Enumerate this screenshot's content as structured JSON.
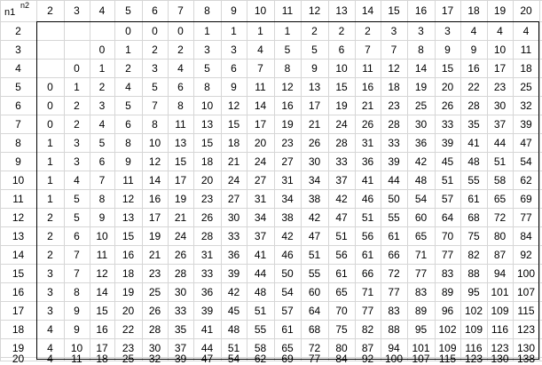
{
  "corner": {
    "row_label": "n1",
    "col_label": "n2"
  },
  "col_headers": [
    "2",
    "3",
    "4",
    "5",
    "6",
    "7",
    "8",
    "9",
    "10",
    "11",
    "12",
    "13",
    "14",
    "15",
    "16",
    "17",
    "18",
    "19",
    "20"
  ],
  "rows": [
    {
      "n1": "2",
      "values": [
        "",
        "",
        "",
        "0",
        "0",
        "0",
        "1",
        "1",
        "1",
        "1",
        "2",
        "2",
        "2",
        "3",
        "3",
        "3",
        "4",
        "4",
        "4"
      ]
    },
    {
      "n1": "3",
      "values": [
        "",
        "",
        "0",
        "1",
        "2",
        "2",
        "3",
        "3",
        "4",
        "5",
        "5",
        "6",
        "7",
        "7",
        "8",
        "9",
        "9",
        "10",
        "11"
      ]
    },
    {
      "n1": "4",
      "values": [
        "",
        "0",
        "1",
        "2",
        "3",
        "4",
        "5",
        "6",
        "7",
        "8",
        "9",
        "10",
        "11",
        "12",
        "14",
        "15",
        "16",
        "17",
        "18"
      ]
    },
    {
      "n1": "5",
      "values": [
        "0",
        "1",
        "2",
        "4",
        "5",
        "6",
        "8",
        "9",
        "11",
        "12",
        "13",
        "15",
        "16",
        "18",
        "19",
        "20",
        "22",
        "23",
        "25"
      ]
    },
    {
      "n1": "6",
      "values": [
        "0",
        "2",
        "3",
        "5",
        "7",
        "8",
        "10",
        "12",
        "14",
        "16",
        "17",
        "19",
        "21",
        "23",
        "25",
        "26",
        "28",
        "30",
        "32"
      ]
    },
    {
      "n1": "7",
      "values": [
        "0",
        "2",
        "4",
        "6",
        "8",
        "11",
        "13",
        "15",
        "17",
        "19",
        "21",
        "24",
        "26",
        "28",
        "30",
        "33",
        "35",
        "37",
        "39"
      ]
    },
    {
      "n1": "8",
      "values": [
        "1",
        "3",
        "5",
        "8",
        "10",
        "13",
        "15",
        "18",
        "20",
        "23",
        "26",
        "28",
        "31",
        "33",
        "36",
        "39",
        "41",
        "44",
        "47"
      ]
    },
    {
      "n1": "9",
      "values": [
        "1",
        "3",
        "6",
        "9",
        "12",
        "15",
        "18",
        "21",
        "24",
        "27",
        "30",
        "33",
        "36",
        "39",
        "42",
        "45",
        "48",
        "51",
        "54"
      ]
    },
    {
      "n1": "10",
      "values": [
        "1",
        "4",
        "7",
        "11",
        "14",
        "17",
        "20",
        "24",
        "27",
        "31",
        "34",
        "37",
        "41",
        "44",
        "48",
        "51",
        "55",
        "58",
        "62"
      ]
    },
    {
      "n1": "11",
      "values": [
        "1",
        "5",
        "8",
        "12",
        "16",
        "19",
        "23",
        "27",
        "31",
        "34",
        "38",
        "42",
        "46",
        "50",
        "54",
        "57",
        "61",
        "65",
        "69"
      ]
    },
    {
      "n1": "12",
      "values": [
        "2",
        "5",
        "9",
        "13",
        "17",
        "21",
        "26",
        "30",
        "34",
        "38",
        "42",
        "47",
        "51",
        "55",
        "60",
        "64",
        "68",
        "72",
        "77"
      ]
    },
    {
      "n1": "13",
      "values": [
        "2",
        "6",
        "10",
        "15",
        "19",
        "24",
        "28",
        "33",
        "37",
        "42",
        "47",
        "51",
        "56",
        "61",
        "65",
        "70",
        "75",
        "80",
        "84"
      ]
    },
    {
      "n1": "14",
      "values": [
        "2",
        "7",
        "11",
        "16",
        "21",
        "26",
        "31",
        "36",
        "41",
        "46",
        "51",
        "56",
        "61",
        "66",
        "71",
        "77",
        "82",
        "87",
        "92"
      ]
    },
    {
      "n1": "15",
      "values": [
        "3",
        "7",
        "12",
        "18",
        "23",
        "28",
        "33",
        "39",
        "44",
        "50",
        "55",
        "61",
        "66",
        "72",
        "77",
        "83",
        "88",
        "94",
        "100"
      ]
    },
    {
      "n1": "16",
      "values": [
        "3",
        "8",
        "14",
        "19",
        "25",
        "30",
        "36",
        "42",
        "48",
        "54",
        "60",
        "65",
        "71",
        "77",
        "83",
        "89",
        "95",
        "101",
        "107"
      ]
    },
    {
      "n1": "17",
      "values": [
        "3",
        "9",
        "15",
        "20",
        "26",
        "33",
        "39",
        "45",
        "51",
        "57",
        "64",
        "70",
        "77",
        "83",
        "89",
        "96",
        "102",
        "109",
        "115"
      ]
    },
    {
      "n1": "18",
      "values": [
        "4",
        "9",
        "16",
        "22",
        "28",
        "35",
        "41",
        "48",
        "55",
        "61",
        "68",
        "75",
        "82",
        "88",
        "95",
        "102",
        "109",
        "116",
        "123"
      ]
    },
    {
      "n1": "19",
      "values": [
        "4",
        "10",
        "17",
        "23",
        "30",
        "37",
        "44",
        "51",
        "58",
        "65",
        "72",
        "80",
        "87",
        "94",
        "101",
        "109",
        "116",
        "123",
        "130"
      ]
    },
    {
      "n1": "20",
      "values": [
        "4",
        "11",
        "18",
        "25",
        "32",
        "39",
        "47",
        "54",
        "62",
        "69",
        "77",
        "84",
        "92",
        "100",
        "107",
        "115",
        "123",
        "130",
        "138"
      ]
    }
  ]
}
